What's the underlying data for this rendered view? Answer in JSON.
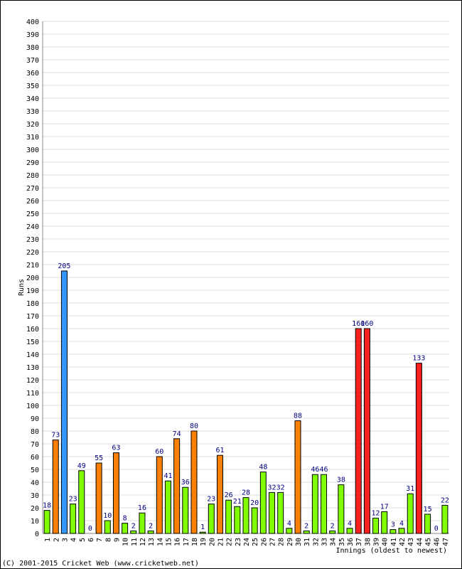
{
  "chart_data": {
    "type": "bar",
    "ylabel": "Runs",
    "xlabel": "Innings (oldest to newest)",
    "ylim": [
      0,
      400
    ],
    "y_tick_step": 10,
    "grid": true,
    "categories": [
      "1",
      "2",
      "3",
      "4",
      "5",
      "6",
      "7",
      "8",
      "9",
      "10",
      "11",
      "12",
      "13",
      "14",
      "15",
      "16",
      "17",
      "18",
      "19",
      "20",
      "21",
      "22",
      "23",
      "24",
      "25",
      "26",
      "27",
      "28",
      "29",
      "30",
      "31",
      "32",
      "33",
      "34",
      "35",
      "36",
      "37",
      "38",
      "39",
      "40",
      "41",
      "42",
      "43",
      "44",
      "45",
      "46",
      "47"
    ],
    "values": [
      18,
      73,
      205,
      23,
      49,
      0,
      55,
      10,
      63,
      8,
      2,
      16,
      2,
      60,
      41,
      74,
      36,
      80,
      1,
      23,
      61,
      26,
      21,
      28,
      20,
      48,
      32,
      32,
      4,
      88,
      2,
      46,
      46,
      2,
      38,
      4,
      160,
      160,
      12,
      17,
      3,
      4,
      31,
      133,
      15,
      0,
      22
    ],
    "colors": {
      "under_50": "#80ff00",
      "fifty": "#ff8000",
      "hundred": "#ff2020",
      "double_hundred": "#3399ff",
      "label": "#000080",
      "grid": "#dddddd"
    }
  },
  "footer": {
    "copyright": "(C) 2001-2015 Cricket Web (www.cricketweb.net)"
  }
}
